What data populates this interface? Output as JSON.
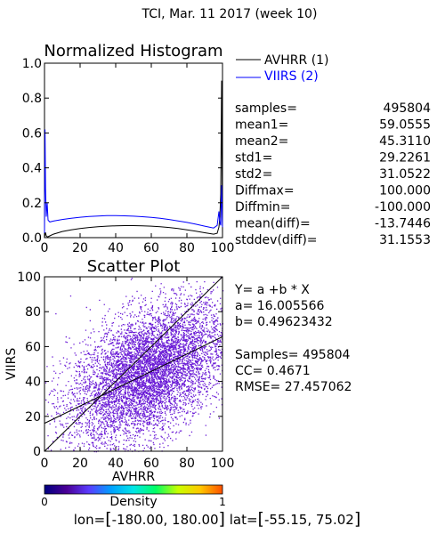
{
  "page_title": "TCI,  Mar. 11 2017 (week 10)",
  "bottom_caption": {
    "lon_prefix": "lon=",
    "lon_range": "-180.00, 180.00",
    "lat_prefix": "lat=",
    "lat_range": "-55.15, 75.02"
  },
  "stats": [
    {
      "label": "samples=",
      "value": "495804"
    },
    {
      "label": "mean1=",
      "value": "59.0555"
    },
    {
      "label": "mean2=",
      "value": "45.3110"
    },
    {
      "label": "std1=",
      "value": "29.2261"
    },
    {
      "label": "std2=",
      "value": "31.0522"
    },
    {
      "label": "Diffmax=",
      "value": "100.000"
    },
    {
      "label": "Diffmin=",
      "value": "-100.000"
    },
    {
      "label": "mean(diff)=",
      "value": "-13.7446"
    },
    {
      "label": "stddev(diff)=",
      "value": "31.1553"
    }
  ],
  "regression": {
    "equation": "Y= a +b * X",
    "a_line": "a= 16.005566",
    "b_line": "b= 0.49623432",
    "samples_line": "Samples= 495804",
    "cc_line": "CC=  0.4671",
    "rmse_line": "RMSE= 27.457062"
  },
  "colorbar": {
    "min_label": "0",
    "title": "Density",
    "max_label": "1",
    "colors": [
      "#000080",
      "#4b0096",
      "#5a3cff",
      "#00a0ff",
      "#00e6e6",
      "#00ff64",
      "#c8ff00",
      "#ffc800",
      "#ff5000"
    ]
  },
  "chart_data": [
    {
      "type": "line",
      "title": "Normalized Histogram",
      "xlim": [
        0,
        100
      ],
      "ylim": [
        0,
        1.0
      ],
      "xticks": [
        "0",
        "20",
        "40",
        "60",
        "80",
        "100"
      ],
      "yticks": [
        "0.0",
        "0.2",
        "0.4",
        "0.6",
        "0.8",
        "1.0"
      ],
      "legend_position": "top-right",
      "series": [
        {
          "name": "AVHRR (1)",
          "color": "#000000",
          "x": [
            0,
            0.5,
            1,
            1.5,
            2,
            3,
            5,
            10,
            15,
            20,
            25,
            30,
            35,
            40,
            45,
            50,
            55,
            60,
            65,
            70,
            75,
            80,
            85,
            90,
            95,
            97,
            98,
            98.5,
            99,
            99.5,
            100
          ],
          "y": [
            0.0,
            0.03,
            0.01,
            0.005,
            0.005,
            0.01,
            0.02,
            0.035,
            0.045,
            0.052,
            0.058,
            0.063,
            0.066,
            0.068,
            0.069,
            0.069,
            0.068,
            0.066,
            0.063,
            0.058,
            0.052,
            0.045,
            0.037,
            0.028,
            0.02,
            0.025,
            0.06,
            0.12,
            0.25,
            0.9,
            0.02
          ]
        },
        {
          "name": "VIIRS (2)",
          "color": "#0000ff",
          "x": [
            0,
            0.3,
            0.6,
            1,
            1.5,
            2,
            3,
            5,
            10,
            15,
            20,
            25,
            30,
            35,
            40,
            45,
            50,
            55,
            60,
            65,
            70,
            75,
            80,
            85,
            90,
            95,
            97,
            98,
            98.5,
            99,
            99.5,
            100
          ],
          "y": [
            0.02,
            0.62,
            0.28,
            0.12,
            0.2,
            0.1,
            0.09,
            0.095,
            0.104,
            0.111,
            0.117,
            0.121,
            0.124,
            0.126,
            0.126,
            0.125,
            0.123,
            0.12,
            0.116,
            0.111,
            0.104,
            0.096,
            0.087,
            0.077,
            0.066,
            0.055,
            0.07,
            0.15,
            0.09,
            0.07,
            0.3,
            0.06
          ]
        }
      ]
    },
    {
      "type": "scatter",
      "title": "Scatter Plot",
      "xlabel": "AVHRR",
      "ylabel": "VIIRS",
      "xlim": [
        0,
        100
      ],
      "ylim": [
        0,
        100
      ],
      "xticks": [
        "0",
        "20",
        "40",
        "60",
        "80",
        "100"
      ],
      "yticks": [
        "0",
        "20",
        "40",
        "60",
        "80",
        "100"
      ],
      "density_cloud": {
        "color": "#6a1bd6",
        "center": [
          58,
          45
        ],
        "std": [
          22,
          20
        ],
        "correlation": 0.47
      },
      "reference_lines": [
        {
          "name": "1:1",
          "x": [
            0,
            100
          ],
          "y": [
            0,
            100
          ],
          "color": "#000000"
        },
        {
          "name": "regression",
          "intercept": 16.005566,
          "slope": 0.49623432,
          "color": "#000000"
        }
      ]
    }
  ]
}
